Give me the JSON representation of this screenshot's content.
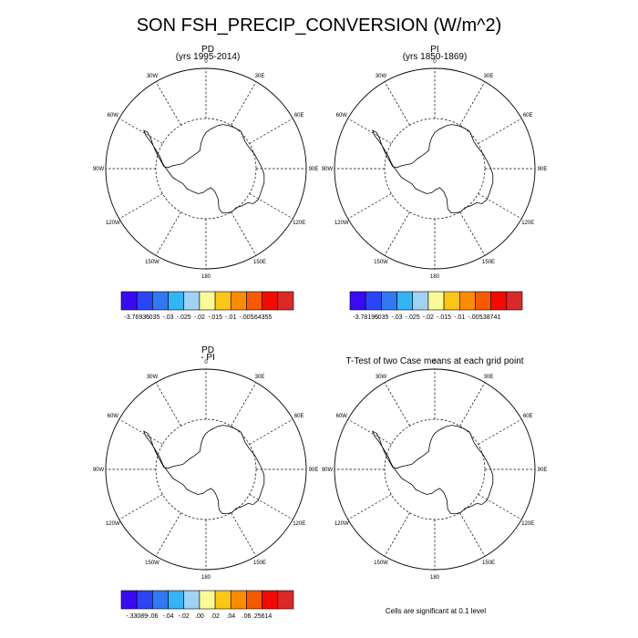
{
  "title": "SON FSH_PRECIP_CONVERSION (W/m^2)",
  "panels": [
    {
      "title": "PD",
      "subtitle": "(yrs 1995-2014)"
    },
    {
      "title": "PI",
      "subtitle": "(yrs 1850-1869)"
    },
    {
      "title": "PD",
      "subtitle": "- PI"
    },
    {
      "title": "T-Test of two Case means at each grid point",
      "subtitle": ""
    }
  ],
  "lon_labels": [
    "0",
    "30E",
    "60E",
    "90E",
    "120E",
    "150E",
    "180",
    "150W",
    "120W",
    "90W",
    "60W",
    "30W"
  ],
  "colorbars": [
    {
      "labels": [
        "-3.76935",
        "-.035",
        "-.03",
        "-.025",
        "-.02",
        "-.015",
        "-.01",
        "-.005",
        ".64355"
      ]
    },
    {
      "labels": [
        "-3.78195",
        "-.035",
        "-.03",
        "-.025",
        "-.02",
        "-.015",
        "-.01",
        "-.005",
        ".38741"
      ]
    },
    {
      "labels": [
        "-.33089",
        "-.06",
        "-.04",
        "-.02",
        ".00",
        ".02",
        ".04",
        ".06",
        ".25614"
      ]
    }
  ],
  "colors": [
    "#3a0af0",
    "#2b44f5",
    "#3278f2",
    "#32b4f5",
    "#a0d2f5",
    "#fafa96",
    "#fac814",
    "#fa8c00",
    "#f55a00",
    "#f50a00",
    "#dc2828"
  ],
  "significance_note": "Cells are significant at 0.1 level"
}
